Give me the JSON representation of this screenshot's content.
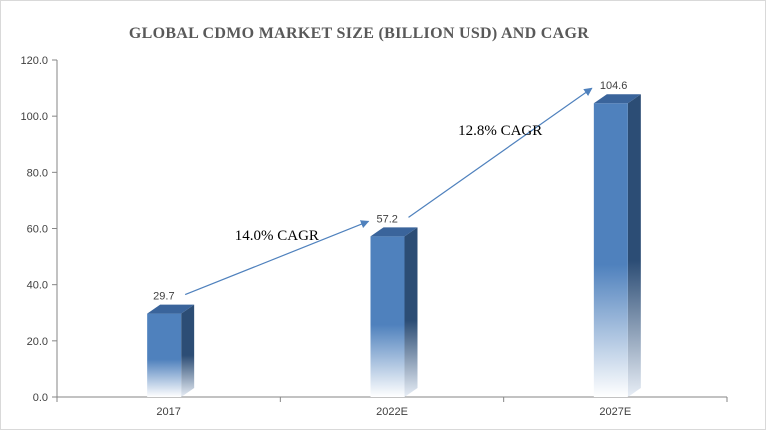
{
  "chart_data": {
    "type": "bar",
    "title": "GLOBAL CDMO MARKET SIZE (BILLION USD) AND CAGR",
    "categories": [
      "2017",
      "2022E",
      "2027E"
    ],
    "series": [
      {
        "values": [
          29.7,
          57.2,
          104.6
        ]
      }
    ],
    "value_labels": [
      "29.7",
      "57.2",
      "104.6"
    ],
    "ylim": [
      0,
      120
    ],
    "yticks": [
      "0.0",
      "20.0",
      "40.0",
      "60.0",
      "80.0",
      "100.0",
      "120.0"
    ],
    "ytick_values": [
      0,
      20,
      40,
      60,
      80,
      100,
      120
    ],
    "grid": false,
    "legend": "none",
    "bar_color": "#4f81bd",
    "bar_side_color": "#2c4d75",
    "bar_top_color": "#3a649b",
    "arrow_color": "#4f81bd",
    "annotations": [
      {
        "text": "14.0% CAGR",
        "from": 0,
        "to": 1
      },
      {
        "text": "12.8% CAGR",
        "from": 1,
        "to": 2
      }
    ]
  }
}
